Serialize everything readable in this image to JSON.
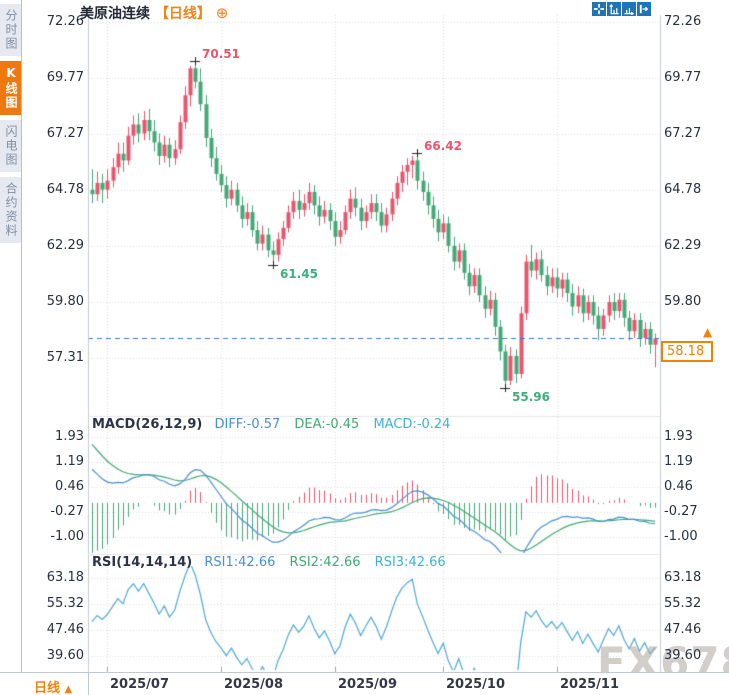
{
  "app": {
    "title_symbol": "美原油连续",
    "title_period": "【日线】",
    "add_icon": "⊕"
  },
  "sidebar": {
    "tabs": [
      {
        "label": "分时图",
        "active": false
      },
      {
        "label": "K线图",
        "active": true
      },
      {
        "label": "闪电图",
        "active": false
      },
      {
        "label": "合约资料",
        "active": false
      }
    ]
  },
  "toolbar": {
    "icons": [
      "pan-move-icon",
      "y-axis-scale-icon",
      "x-axis-scale-icon",
      "shift-right-icon"
    ]
  },
  "main_panel": {
    "y_axis_labels": [
      "72.26",
      "69.77",
      "67.27",
      "64.78",
      "62.29",
      "59.80",
      "57.31"
    ]
  },
  "macd_panel": {
    "header": "MACD(26,12,9)",
    "diff_label": "DIFF:-0.57",
    "dea_label": "DEA:-0.45",
    "macd_label": "MACD:-0.24",
    "y_axis_labels": [
      "1.93",
      "1.19",
      "0.46",
      "-0.27",
      "-1.00"
    ]
  },
  "rsi_panel": {
    "header": "RSI(14,14,14)",
    "rsi1_label": "RSI1:42.66",
    "rsi2_label": "RSI2:42.66",
    "rsi3_label": "RSI3:42.66",
    "y_axis_labels": [
      "63.18",
      "55.32",
      "47.46",
      "39.60"
    ]
  },
  "bottom_bar": {
    "timeframe_label": "日线",
    "timeframe_arrow": "▲",
    "x_labels": [
      "2025/07",
      "2025/08",
      "2025/09",
      "2025/10",
      "2025/11"
    ]
  },
  "price_tag": {
    "value": "58.18",
    "arrow": "▲"
  },
  "watermark": "FX678",
  "colors": {
    "up": "#e8566d",
    "down": "#45a877",
    "accent_orange": "#f5820f",
    "diff_blue": "#4a8fd3",
    "dea_green": "#43a873",
    "macd_cyan": "#3fb0d8",
    "rsi_line": "#4fa8d5",
    "price_line_blue": "#2f7ed8",
    "axis_text": "#273142",
    "grid": "#d9dce2",
    "toolbar_blue": "#1f74b8",
    "watermark": "#ada79f"
  },
  "chart_data": [
    {
      "type": "candlestick",
      "title": "美原油连续 日线 (WTI crude continuous, daily)",
      "ylim": [
        54.9,
        72.6
      ],
      "y_axis_values": [
        72.26,
        69.77,
        67.27,
        64.78,
        62.29,
        59.8,
        57.31
      ],
      "x_labels": [
        "2025/07",
        "2025/08",
        "2025/09",
        "2025/10",
        "2025/11"
      ],
      "month_start_indices": [
        3,
        25,
        47,
        68,
        90
      ],
      "last_price": 58.18,
      "annotations": [
        {
          "index": 20,
          "price": 70.51,
          "label": "70.51",
          "kind": "high"
        },
        {
          "index": 35,
          "price": 61.45,
          "label": "61.45",
          "kind": "low"
        },
        {
          "index": 63,
          "price": 66.42,
          "label": "66.42",
          "kind": "high"
        },
        {
          "index": 80,
          "price": 55.96,
          "label": "55.96",
          "kind": "low"
        }
      ],
      "candles": [
        [
          64.8,
          65.7,
          64.2,
          64.6
        ],
        [
          64.6,
          65.6,
          64.3,
          65.1
        ],
        [
          65.1,
          65.5,
          64.2,
          64.8
        ],
        [
          64.8,
          65.7,
          64.4,
          65.2
        ],
        [
          65.2,
          66.2,
          64.9,
          65.8
        ],
        [
          65.8,
          66.9,
          65.5,
          66.4
        ],
        [
          66.4,
          66.9,
          65.6,
          66.1
        ],
        [
          66.1,
          67.6,
          65.9,
          67.2
        ],
        [
          67.2,
          68.1,
          66.8,
          67.7
        ],
        [
          67.7,
          68.2,
          66.9,
          67.3
        ],
        [
          67.3,
          68.3,
          67.0,
          67.9
        ],
        [
          67.9,
          68.4,
          67.0,
          67.4
        ],
        [
          67.4,
          67.9,
          66.5,
          66.9
        ],
        [
          66.9,
          67.3,
          65.9,
          66.3
        ],
        [
          66.3,
          67.2,
          66.0,
          66.8
        ],
        [
          66.8,
          67.1,
          65.8,
          66.2
        ],
        [
          66.2,
          67.0,
          65.9,
          66.6
        ],
        [
          66.6,
          68.1,
          66.4,
          67.8
        ],
        [
          67.8,
          69.4,
          67.5,
          69.0
        ],
        [
          69.0,
          70.3,
          68.5,
          70.2
        ],
        [
          70.2,
          70.51,
          69.3,
          69.6
        ],
        [
          69.6,
          70.2,
          68.3,
          68.6
        ],
        [
          68.6,
          69.0,
          66.7,
          67.1
        ],
        [
          67.1,
          67.5,
          65.8,
          66.2
        ],
        [
          66.2,
          66.7,
          65.2,
          65.5
        ],
        [
          65.5,
          65.9,
          64.7,
          65.0
        ],
        [
          65.0,
          65.4,
          64.0,
          64.4
        ],
        [
          64.4,
          65.2,
          64.1,
          64.8
        ],
        [
          64.8,
          65.1,
          63.8,
          64.1
        ],
        [
          64.1,
          64.5,
          63.1,
          63.5
        ],
        [
          63.5,
          64.2,
          63.2,
          63.8
        ],
        [
          63.8,
          64.1,
          62.7,
          63.0
        ],
        [
          63.0,
          63.4,
          62.1,
          62.4
        ],
        [
          62.4,
          63.2,
          62.1,
          62.8
        ],
        [
          62.8,
          63.1,
          61.8,
          62.1
        ],
        [
          62.1,
          62.5,
          61.45,
          61.9
        ],
        [
          61.9,
          62.9,
          61.6,
          62.6
        ],
        [
          62.6,
          63.4,
          62.3,
          63.1
        ],
        [
          63.1,
          64.1,
          62.9,
          63.8
        ],
        [
          63.8,
          64.7,
          63.5,
          64.3
        ],
        [
          64.3,
          64.8,
          63.5,
          63.9
        ],
        [
          63.9,
          64.6,
          63.6,
          64.2
        ],
        [
          64.2,
          65.1,
          63.9,
          64.7
        ],
        [
          64.7,
          65.0,
          63.7,
          64.1
        ],
        [
          64.1,
          64.5,
          63.2,
          63.6
        ],
        [
          63.6,
          64.3,
          63.3,
          63.9
        ],
        [
          63.9,
          64.2,
          63.0,
          63.4
        ],
        [
          63.4,
          63.8,
          62.3,
          62.7
        ],
        [
          62.7,
          63.4,
          62.4,
          63.0
        ],
        [
          63.0,
          64.1,
          62.8,
          63.8
        ],
        [
          63.8,
          64.8,
          63.5,
          64.4
        ],
        [
          64.4,
          64.9,
          63.6,
          64.0
        ],
        [
          64.0,
          64.4,
          63.0,
          63.4
        ],
        [
          63.4,
          64.1,
          63.1,
          63.8
        ],
        [
          63.8,
          64.6,
          63.5,
          64.2
        ],
        [
          64.2,
          64.6,
          63.4,
          63.8
        ],
        [
          63.8,
          64.2,
          62.9,
          63.2
        ],
        [
          63.2,
          64.0,
          62.9,
          63.7
        ],
        [
          63.7,
          64.7,
          63.4,
          64.4
        ],
        [
          64.4,
          65.4,
          64.1,
          65.1
        ],
        [
          65.1,
          65.9,
          64.7,
          65.6
        ],
        [
          65.6,
          66.2,
          65.0,
          65.9
        ],
        [
          65.9,
          66.3,
          65.3,
          66.1
        ],
        [
          66.1,
          66.42,
          64.8,
          65.2
        ],
        [
          65.2,
          65.6,
          64.3,
          64.7
        ],
        [
          64.7,
          65.1,
          63.7,
          64.1
        ],
        [
          64.1,
          64.5,
          63.1,
          63.5
        ],
        [
          63.5,
          63.9,
          62.5,
          62.9
        ],
        [
          62.9,
          63.7,
          62.6,
          63.3
        ],
        [
          63.3,
          63.6,
          62.0,
          62.3
        ],
        [
          62.3,
          62.7,
          61.2,
          61.6
        ],
        [
          61.6,
          62.4,
          61.3,
          62.1
        ],
        [
          62.1,
          62.4,
          60.8,
          61.1
        ],
        [
          61.1,
          61.5,
          60.1,
          60.5
        ],
        [
          60.5,
          61.3,
          60.2,
          61.0
        ],
        [
          61.0,
          61.3,
          59.8,
          60.1
        ],
        [
          60.1,
          60.5,
          59.1,
          59.5
        ],
        [
          59.5,
          60.3,
          59.2,
          59.9
        ],
        [
          59.9,
          60.2,
          58.3,
          58.7
        ],
        [
          58.7,
          59.0,
          57.2,
          57.6
        ],
        [
          57.6,
          57.9,
          55.96,
          56.3
        ],
        [
          56.3,
          57.8,
          56.1,
          57.4
        ],
        [
          57.4,
          57.7,
          56.2,
          56.6
        ],
        [
          56.6,
          59.6,
          56.4,
          59.3
        ],
        [
          59.3,
          61.9,
          59.0,
          61.6
        ],
        [
          61.6,
          62.35,
          60.9,
          61.2
        ],
        [
          61.2,
          62.0,
          60.8,
          61.7
        ],
        [
          61.7,
          62.1,
          60.7,
          61.0
        ],
        [
          61.0,
          61.4,
          60.1,
          60.5
        ],
        [
          60.5,
          61.3,
          60.2,
          60.9
        ],
        [
          60.9,
          61.3,
          60.0,
          60.4
        ],
        [
          60.4,
          61.1,
          60.0,
          60.8
        ],
        [
          60.8,
          61.1,
          59.8,
          60.2
        ],
        [
          60.2,
          60.6,
          59.2,
          59.6
        ],
        [
          59.6,
          60.5,
          59.3,
          60.1
        ],
        [
          60.1,
          60.4,
          58.9,
          59.3
        ],
        [
          59.3,
          60.1,
          59.0,
          59.8
        ],
        [
          59.8,
          60.1,
          58.8,
          59.2
        ],
        [
          59.2,
          59.6,
          58.1,
          58.6
        ],
        [
          58.6,
          59.5,
          58.3,
          59.2
        ],
        [
          59.2,
          60.1,
          58.9,
          59.8
        ],
        [
          59.8,
          60.2,
          59.0,
          59.4
        ],
        [
          59.4,
          60.2,
          59.1,
          59.9
        ],
        [
          59.9,
          60.2,
          58.7,
          59.1
        ],
        [
          59.1,
          59.4,
          58.1,
          58.5
        ],
        [
          58.5,
          59.3,
          58.2,
          59.0
        ],
        [
          59.0,
          59.3,
          57.8,
          58.2
        ],
        [
          58.2,
          58.9,
          57.9,
          58.6
        ],
        [
          58.6,
          58.9,
          57.5,
          57.9
        ],
        [
          57.9,
          58.4,
          56.9,
          58.18
        ]
      ]
    },
    {
      "type": "bar",
      "name": "MACD(26,12,9)",
      "params": [
        26,
        12,
        9
      ],
      "derived_from": "candle closes (DIFF=EMA12-EMA26, DEA=EMA9(DIFF), bar=2*(DIFF-DEA))",
      "current": {
        "diff": -0.57,
        "dea": -0.45,
        "macd": -0.24
      },
      "y_axis_values": [
        1.93,
        1.19,
        0.46,
        -0.27,
        -1.0
      ]
    },
    {
      "type": "line",
      "name": "RSI(14,14,14)",
      "params": [
        14,
        14,
        14
      ],
      "current": {
        "rsi1": 42.66,
        "rsi2": 42.66,
        "rsi3": 42.66
      },
      "y_axis_values": [
        63.18,
        55.32,
        47.46,
        39.6
      ]
    }
  ]
}
